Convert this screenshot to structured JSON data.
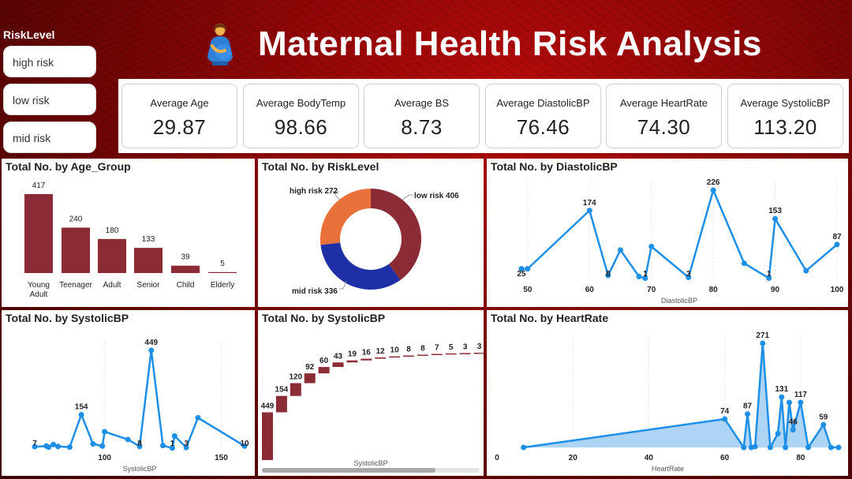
{
  "slicer": {
    "title": "RiskLevel",
    "items": [
      "high risk",
      "low risk",
      "mid risk"
    ]
  },
  "header": {
    "title": "Maternal Health Risk Analysis",
    "icon": "pregnant-person-icon"
  },
  "kpis": [
    {
      "label": "Average Age",
      "value": "29.87"
    },
    {
      "label": "Average BodyTemp",
      "value": "98.66"
    },
    {
      "label": "Average BS",
      "value": "8.73"
    },
    {
      "label": "Average DiastolicBP",
      "value": "76.46"
    },
    {
      "label": "Average HeartRate",
      "value": "74.30"
    },
    {
      "label": "Average SystolicBP",
      "value": "113.20"
    }
  ],
  "colors": {
    "bar": "#8b2b35",
    "line": "#1e8fe6",
    "area": "#9fcbf3",
    "donut_high": "#e8703a",
    "donut_low": "#8b2b35",
    "donut_mid": "#1f2fa6"
  },
  "chart_data": [
    {
      "type": "bar",
      "title": "Total No. by Age_Group",
      "categories": [
        "Young Adult",
        "Teenager",
        "Adult",
        "Senior",
        "Child",
        "Elderly"
      ],
      "values": [
        417,
        240,
        180,
        133,
        39,
        5
      ]
    },
    {
      "type": "pie",
      "title": "Total No. by RiskLevel",
      "labels": [
        "low risk",
        "mid risk",
        "high risk"
      ],
      "values": [
        406,
        336,
        272
      ],
      "data_labels": [
        "low risk 406",
        "mid risk 336",
        "high risk 272"
      ]
    },
    {
      "type": "line",
      "title": "Total No. by DiastolicBP",
      "xlabel": "DiastolicBP",
      "xticks": [
        "50",
        "60",
        "70",
        "80",
        "90",
        "100"
      ],
      "x": [
        49,
        50,
        60,
        63,
        65,
        68,
        69,
        70,
        76,
        80,
        85,
        89,
        90,
        95,
        100
      ],
      "y": [
        25,
        25,
        174,
        8,
        73,
        5,
        1,
        82,
        3,
        226,
        39,
        1,
        153,
        20,
        87
      ],
      "data_labels": [
        {
          "i": 0,
          "text": "25"
        },
        {
          "i": 2,
          "text": "174"
        },
        {
          "i": 3,
          "text": "8"
        },
        {
          "i": 6,
          "text": "1"
        },
        {
          "i": 8,
          "text": "3"
        },
        {
          "i": 9,
          "text": "226"
        },
        {
          "i": 11,
          "text": "1"
        },
        {
          "i": 12,
          "text": "153"
        },
        {
          "i": 14,
          "text": "87"
        }
      ]
    },
    {
      "type": "line",
      "title": "Total No. by SystolicBP",
      "xlabel": "SystolicBP",
      "xticks": [
        "100",
        "150"
      ],
      "x": [
        70,
        75,
        76,
        78,
        80,
        85,
        90,
        95,
        99,
        100,
        110,
        115,
        120,
        125,
        129,
        130,
        135,
        140,
        160
      ],
      "y": [
        7,
        10,
        5,
        17,
        8,
        5,
        154,
        20,
        10,
        76,
        40,
        8,
        449,
        12,
        1,
        56,
        3,
        140,
        10
      ],
      "data_labels": [
        {
          "i": 0,
          "text": "7"
        },
        {
          "i": 6,
          "text": "154"
        },
        {
          "i": 11,
          "text": "8"
        },
        {
          "i": 12,
          "text": "449"
        },
        {
          "i": 14,
          "text": "1"
        },
        {
          "i": 16,
          "text": "3"
        },
        {
          "i": 18,
          "text": "10"
        }
      ]
    },
    {
      "type": "bar",
      "title": "Total No. by SystolicBP",
      "xlabel": "SystolicBP",
      "values": [
        449,
        154,
        120,
        92,
        60,
        43,
        19,
        16,
        12,
        10,
        8,
        8,
        7,
        5,
        3,
        3
      ]
    },
    {
      "type": "area",
      "title": "Total No. by HeartRate",
      "xlabel": "HeartRate",
      "xticks": [
        "0",
        "20",
        "40",
        "60",
        "80"
      ],
      "x": [
        7,
        60,
        65,
        66,
        67,
        68,
        70,
        72,
        74,
        75,
        76,
        77,
        78,
        80,
        82,
        86,
        88,
        90
      ],
      "y": [
        0,
        74,
        0,
        87,
        0,
        2,
        271,
        0,
        36,
        131,
        0,
        117,
        46,
        117,
        0,
        59,
        0,
        0
      ],
      "data_labels": [
        {
          "i": 1,
          "text": "74"
        },
        {
          "i": 3,
          "text": "87"
        },
        {
          "i": 6,
          "text": "271"
        },
        {
          "i": 9,
          "text": "131"
        },
        {
          "i": 12,
          "text": "46"
        },
        {
          "i": 13,
          "text": "117"
        },
        {
          "i": 15,
          "text": "59"
        }
      ]
    }
  ]
}
